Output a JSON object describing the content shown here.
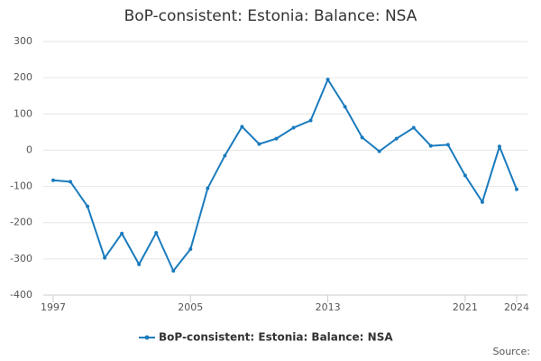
{
  "chart_data": {
    "type": "line",
    "title": "BoP-consistent: Estonia: Balance: NSA",
    "x": [
      1997,
      1998,
      1999,
      2000,
      2001,
      2002,
      2003,
      2004,
      2005,
      2006,
      2007,
      2008,
      2009,
      2010,
      2011,
      2012,
      2013,
      2014,
      2015,
      2016,
      2017,
      2018,
      2019,
      2020,
      2021,
      2022,
      2023,
      2024
    ],
    "series": [
      {
        "name": "BoP-consistent: Estonia: Balance: NSA",
        "color": "#1a7bbd",
        "values": [
          -83,
          -87,
          -155,
          -297,
          -230,
          -315,
          -228,
          -333,
          -273,
          -105,
          -15,
          65,
          17,
          32,
          62,
          82,
          195,
          120,
          35,
          -3,
          32,
          62,
          12,
          15,
          -70,
          -143,
          10,
          -108
        ]
      }
    ],
    "xlim": [
      1997,
      2024
    ],
    "xticks": [
      1997,
      2005,
      2013,
      2021,
      2024
    ],
    "ylim": [
      -400,
      300
    ],
    "yticks": [
      -400,
      -300,
      -200,
      -100,
      0,
      100,
      200,
      300
    ],
    "grid": true,
    "legend": "bottom",
    "source": "Source:"
  }
}
